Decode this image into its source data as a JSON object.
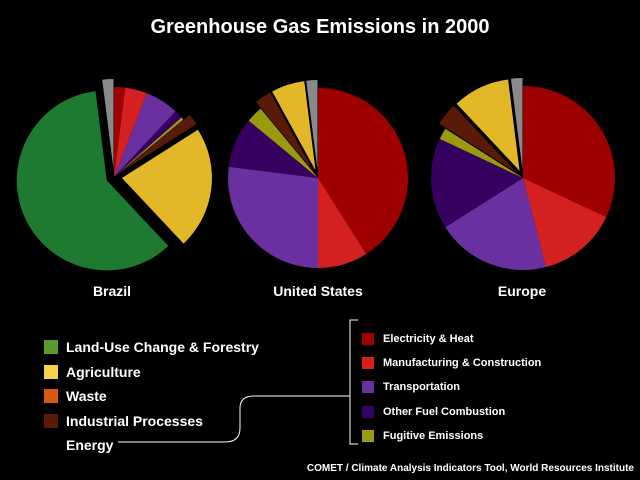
{
  "title": "Greenhouse Gas Emissions in 2000",
  "source": "COMET / Climate Analysis Indicators Tool, World Resources Institute",
  "categories": {
    "land_use": {
      "label": "Land-Use Change & Forestry",
      "color": "#1e7a30",
      "swatch": "#5a9a2e"
    },
    "agriculture": {
      "label": "Agriculture",
      "color": "#e2b828",
      "swatch": "#f7d24a"
    },
    "waste": {
      "label": "Waste",
      "color": "#8a8a8a",
      "swatch": "#d85a10"
    },
    "industrial": {
      "label": "Industrial Processes",
      "color": "#5a1a08",
      "swatch": "#5a1a08"
    },
    "energy": {
      "label": "Energy"
    },
    "electricity": {
      "label": "Electricity & Heat",
      "color": "#9e0000"
    },
    "manufacturing": {
      "label": "Manufacturing & Construction",
      "color": "#d42020"
    },
    "transportation": {
      "label": "Transportation",
      "color": "#6a30a0"
    },
    "other_fuel": {
      "label": "Other Fuel Combustion",
      "color": "#360060"
    },
    "fugitive": {
      "label": "Fugitive Emissions",
      "color": "#9a9a10"
    }
  },
  "chart_data": {
    "type": "pie",
    "title": "Greenhouse Gas Emissions in 2000",
    "pies": [
      {
        "name": "Brazil",
        "slices": [
          {
            "key": "electricity",
            "value": 2.0
          },
          {
            "key": "manufacturing",
            "value": 4.0
          },
          {
            "key": "transportation",
            "value": 6.0
          },
          {
            "key": "other_fuel",
            "value": 1.5
          },
          {
            "key": "fugitive",
            "value": 0.5
          },
          {
            "key": "industrial",
            "value": 2.0
          },
          {
            "key": "agriculture",
            "value": 22.0
          },
          {
            "key": "land_use",
            "value": 60.0
          },
          {
            "key": "waste",
            "value": 2.0
          }
        ]
      },
      {
        "name": "United States",
        "slices": [
          {
            "key": "electricity",
            "value": 41.0
          },
          {
            "key": "manufacturing",
            "value": 9.0
          },
          {
            "key": "transportation",
            "value": 27.0
          },
          {
            "key": "other_fuel",
            "value": 9.0
          },
          {
            "key": "fugitive",
            "value": 3.0
          },
          {
            "key": "industrial",
            "value": 3.0
          },
          {
            "key": "agriculture",
            "value": 6.0
          },
          {
            "key": "waste",
            "value": 2.0
          }
        ]
      },
      {
        "name": "Europe",
        "slices": [
          {
            "key": "electricity",
            "value": 32.0
          },
          {
            "key": "manufacturing",
            "value": 14.0
          },
          {
            "key": "transportation",
            "value": 20.0
          },
          {
            "key": "other_fuel",
            "value": 16.0
          },
          {
            "key": "fugitive",
            "value": 2.0
          },
          {
            "key": "industrial",
            "value": 4.0
          },
          {
            "key": "agriculture",
            "value": 10.0
          },
          {
            "key": "waste",
            "value": 2.0
          }
        ]
      }
    ]
  }
}
